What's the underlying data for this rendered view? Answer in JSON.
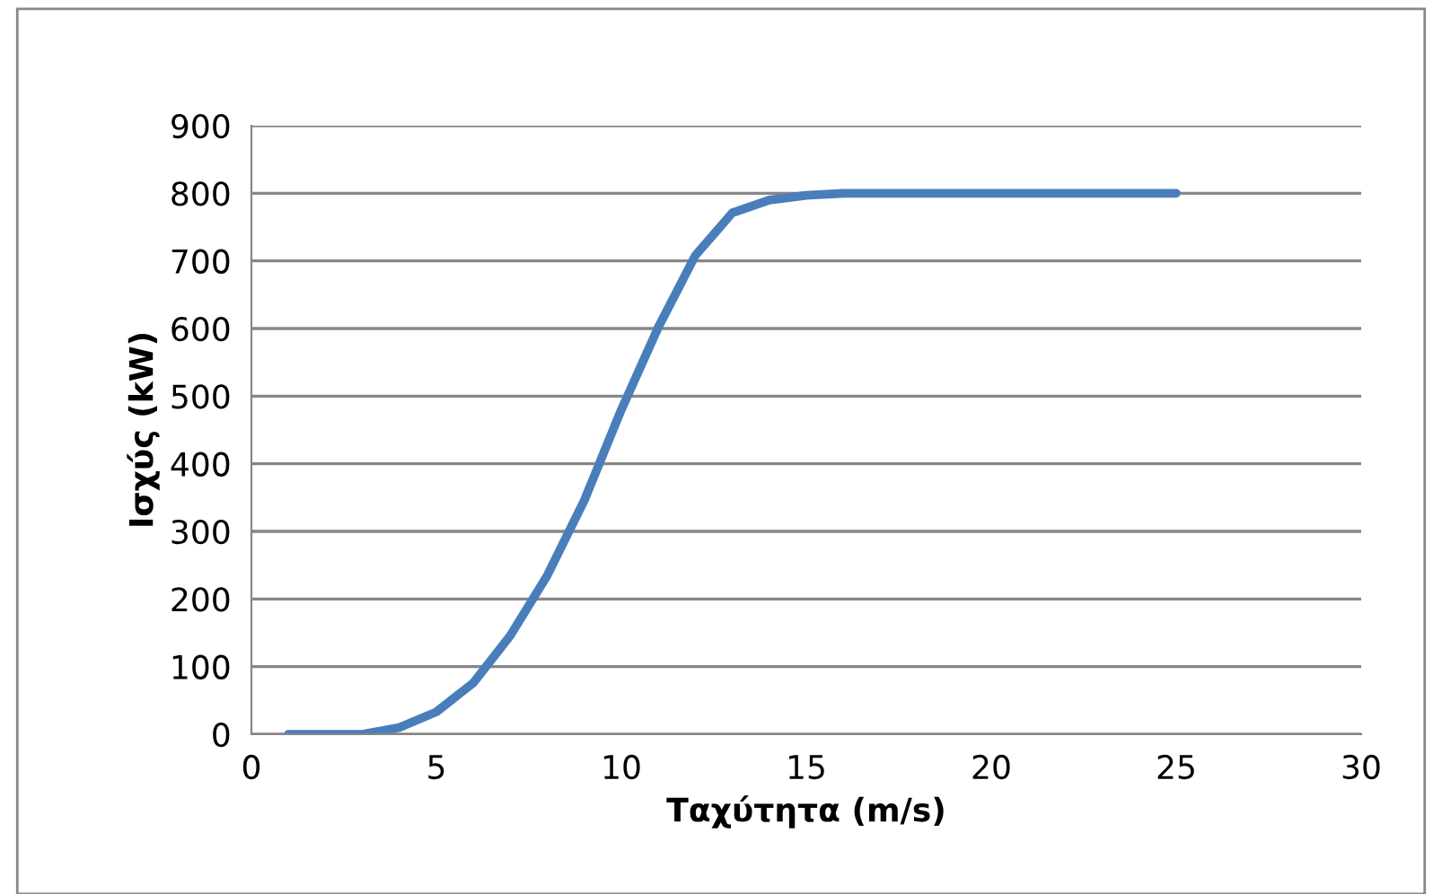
{
  "chart_data": {
    "type": "line",
    "xlabel": "Ταχύτητα (m/s)",
    "ylabel": "Ισχύς (kW)",
    "x": [
      1,
      2,
      3,
      4,
      5,
      6,
      7,
      8,
      9,
      10,
      11,
      12,
      13,
      14,
      15,
      16,
      17,
      18,
      19,
      20,
      21,
      22,
      23,
      24,
      25
    ],
    "series": [
      {
        "color": "#4a7ebb",
        "values": [
          0,
          0,
          0,
          10,
          33,
          76,
          146,
          235,
          346,
          480,
          602,
          708,
          771,
          790,
          797,
          800,
          800,
          800,
          800,
          800,
          800,
          800,
          800,
          800,
          800
        ]
      }
    ],
    "xlim": [
      0,
      30
    ],
    "xticks": [
      0,
      5,
      10,
      15,
      20,
      25,
      30
    ],
    "ylim": [
      0,
      900
    ],
    "yticks": [
      0,
      100,
      200,
      300,
      400,
      500,
      600,
      700,
      800,
      900
    ],
    "grid": "y",
    "marker": "none",
    "line_style": "solid"
  }
}
